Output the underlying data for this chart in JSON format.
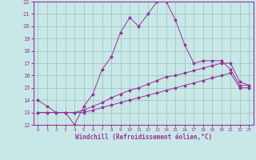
{
  "xlabel": "Windchill (Refroidissement éolien,°C)",
  "background_color": "#c8e8e8",
  "line_color": "#993399",
  "xlim": [
    -0.5,
    23.5
  ],
  "ylim": [
    12,
    22
  ],
  "yticks": [
    12,
    13,
    14,
    15,
    16,
    17,
    18,
    19,
    20,
    21,
    22
  ],
  "xticks": [
    0,
    1,
    2,
    3,
    4,
    5,
    6,
    7,
    8,
    9,
    10,
    11,
    12,
    13,
    14,
    15,
    16,
    17,
    18,
    19,
    20,
    21,
    22,
    23
  ],
  "series1_x": [
    0,
    1,
    2,
    3,
    4,
    5,
    6,
    7,
    8,
    9,
    10,
    11,
    12,
    13,
    14,
    15,
    16,
    17,
    18,
    19,
    20,
    21,
    22,
    23
  ],
  "series1_y": [
    14.0,
    13.5,
    13.0,
    13.0,
    12.0,
    13.5,
    14.5,
    16.5,
    17.5,
    19.5,
    20.7,
    20.0,
    21.0,
    22.0,
    22.0,
    20.5,
    18.5,
    17.0,
    17.2,
    17.2,
    17.2,
    16.5,
    15.2,
    15.2
  ],
  "series2_x": [
    0,
    1,
    2,
    3,
    4,
    5,
    6,
    7,
    8,
    9,
    10,
    11,
    12,
    13,
    14,
    15,
    16,
    17,
    18,
    19,
    20,
    21,
    22,
    23
  ],
  "series2_y": [
    13.0,
    13.0,
    13.0,
    13.0,
    13.0,
    13.2,
    13.5,
    13.8,
    14.2,
    14.5,
    14.8,
    15.0,
    15.3,
    15.6,
    15.9,
    16.0,
    16.2,
    16.4,
    16.6,
    16.8,
    17.0,
    17.0,
    15.5,
    15.2
  ],
  "series3_x": [
    0,
    1,
    2,
    3,
    4,
    5,
    6,
    7,
    8,
    9,
    10,
    11,
    12,
    13,
    14,
    15,
    16,
    17,
    18,
    19,
    20,
    21,
    22,
    23
  ],
  "series3_y": [
    13.0,
    13.0,
    13.0,
    13.0,
    13.0,
    13.0,
    13.2,
    13.4,
    13.6,
    13.8,
    14.0,
    14.2,
    14.4,
    14.6,
    14.8,
    15.0,
    15.2,
    15.4,
    15.6,
    15.8,
    16.0,
    16.2,
    15.0,
    15.0
  ]
}
